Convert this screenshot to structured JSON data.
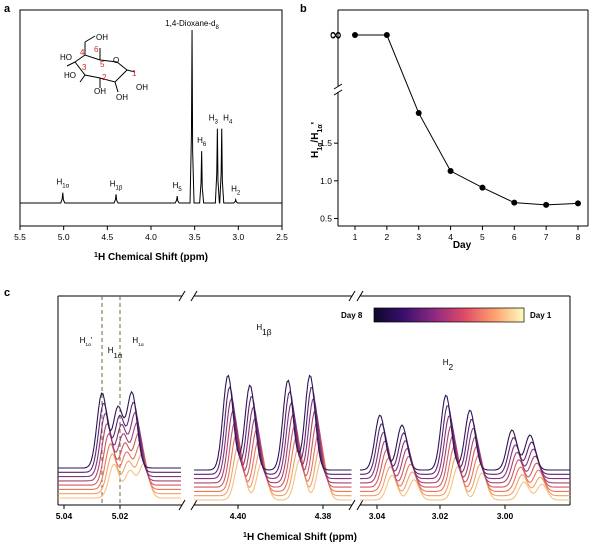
{
  "panels": {
    "a": {
      "label": "a"
    },
    "b": {
      "label": "b"
    },
    "c": {
      "label": "c"
    }
  },
  "chart_data": [
    {
      "panel": "a",
      "type": "line",
      "xlabel_sup": "1",
      "xlabel": "H Chemical Shift (ppm)",
      "xlim": [
        5.5,
        2.5
      ],
      "x_ticks": [
        "5.5",
        "5.0",
        "4.5",
        "4.0",
        "3.5",
        "3.0",
        "2.5"
      ],
      "x_reversed": true,
      "solvent_label": "1,4-Dioxane-d8",
      "peaks": [
        {
          "label": "H1α",
          "ppm": 5.01,
          "rel_height": 0.06
        },
        {
          "label": "H1β",
          "ppm": 4.4,
          "rel_height": 0.05
        },
        {
          "label": "H5",
          "ppm": 3.7,
          "rel_height": 0.04
        },
        {
          "label": "H6",
          "ppm": 3.42,
          "rel_height": 0.3
        },
        {
          "label": "H3",
          "ppm": 3.24,
          "rel_height": 0.43
        },
        {
          "label": "H4",
          "ppm": 3.19,
          "rel_height": 0.43
        },
        {
          "label": "H2",
          "ppm": 3.03,
          "rel_height": 0.02
        },
        {
          "label": "1,4-Dioxane-d8",
          "ppm": 3.53,
          "rel_height": 1.0
        }
      ],
      "structure_atom_labels": [
        "1",
        "2",
        "3",
        "4",
        "5",
        "6"
      ],
      "structure_groups": [
        "OH",
        "HO",
        "HO",
        "OH",
        "OH"
      ]
    },
    {
      "panel": "b",
      "type": "line",
      "xlabel": "Day",
      "ylabel": "H1α/H1α'",
      "categories": [
        1,
        2,
        3,
        4,
        5,
        6,
        7,
        8
      ],
      "x_ticks": [
        "1",
        "2",
        "3",
        "4",
        "5",
        "6",
        "7",
        "8"
      ],
      "infinity_label": "∞",
      "values": [
        "∞",
        "∞",
        1.9,
        1.13,
        0.91,
        0.71,
        0.68,
        0.7
      ],
      "y_ticks": [
        "0.5",
        "1.0",
        "1.5"
      ],
      "ylim_lower": [
        0.4,
        2.1
      ],
      "axis_break": true
    },
    {
      "panel": "c",
      "type": "line",
      "xlabel_sup": "1",
      "xlabel": "H Chemical Shift (ppm)",
      "x_reversed": true,
      "segment_ticks": [
        [
          "5.04",
          "5.02"
        ],
        [
          "4.40",
          "4.38"
        ],
        [
          "3.04",
          "3.02",
          "3.00"
        ]
      ],
      "peak_labels": [
        "H1α'",
        "H1α",
        "H1α",
        "H1β",
        "H2"
      ],
      "colorbar": {
        "left_label": "Day 8",
        "right_label": "Day 1",
        "colors": [
          "#0d0829",
          "#3b0f6f",
          "#8c2981",
          "#de4968",
          "#fe9f6d",
          "#fcfdbf"
        ]
      },
      "series": [
        {
          "day": 1,
          "color": "#f5c27f"
        },
        {
          "day": 2,
          "color": "#f3a06a"
        },
        {
          "day": 3,
          "color": "#e8765a"
        },
        {
          "day": 4,
          "color": "#cd5a63"
        },
        {
          "day": 5,
          "color": "#a84370"
        },
        {
          "day": 6,
          "color": "#82347a"
        },
        {
          "day": 7,
          "color": "#5a2473"
        },
        {
          "day": 8,
          "color": "#2d1655"
        }
      ]
    }
  ]
}
